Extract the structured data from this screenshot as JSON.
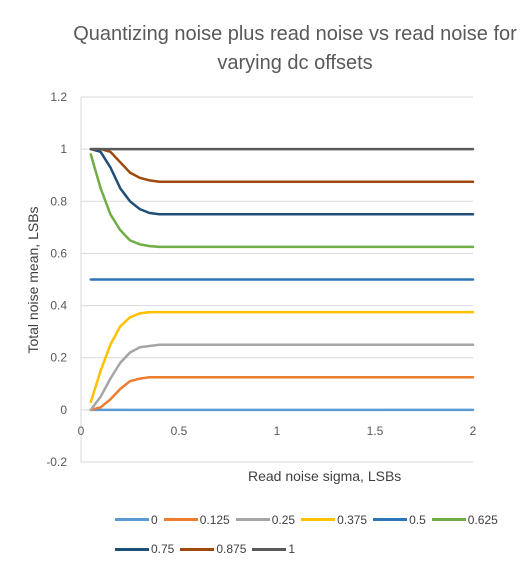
{
  "chart_data": {
    "type": "line",
    "title": "Quantizing noise plus read noise vs read noise for\nvarying dc offsets",
    "xlabel": "Read noise sigma, LSBs",
    "ylabel": "Total noise mean, LSBs",
    "xlim": [
      0,
      2
    ],
    "ylim": [
      -0.2,
      1.2
    ],
    "xticks": [
      0,
      0.5,
      1,
      1.5,
      2
    ],
    "xtick_labels": [
      "0",
      "0.5",
      "1",
      "1.5",
      "2"
    ],
    "yticks": [
      -0.2,
      0,
      0.2,
      0.4,
      0.6,
      0.8,
      1,
      1.2
    ],
    "ytick_labels": [
      "-0.2",
      "0",
      "0.2",
      "0.4",
      "0.6",
      "0.8",
      "1",
      "1.2"
    ],
    "grid": "horizontal",
    "legend": "bottom",
    "x": [
      0.05,
      0.1,
      0.15,
      0.2,
      0.25,
      0.3,
      0.35,
      0.4,
      0.5,
      0.6,
      0.7,
      0.8,
      1.0,
      1.2,
      1.4,
      1.6,
      1.8,
      2.0
    ],
    "series": [
      {
        "name": "0",
        "color": "#5B9BD5",
        "values": [
          0,
          0,
          0,
          0,
          0,
          0,
          0,
          0,
          0,
          0,
          0,
          0,
          0,
          0,
          0,
          0,
          0,
          0
        ]
      },
      {
        "name": "0.125",
        "color": "#ED7D31",
        "values": [
          0,
          0.01,
          0.04,
          0.08,
          0.11,
          0.12,
          0.125,
          0.125,
          0.125,
          0.125,
          0.125,
          0.125,
          0.125,
          0.125,
          0.125,
          0.125,
          0.125,
          0.125
        ]
      },
      {
        "name": "0.25",
        "color": "#A5A5A5",
        "values": [
          0,
          0.05,
          0.12,
          0.18,
          0.22,
          0.24,
          0.245,
          0.25,
          0.25,
          0.25,
          0.25,
          0.25,
          0.25,
          0.25,
          0.25,
          0.25,
          0.25,
          0.25
        ]
      },
      {
        "name": "0.375",
        "color": "#FFC000",
        "values": [
          0.03,
          0.15,
          0.25,
          0.32,
          0.355,
          0.37,
          0.375,
          0.375,
          0.375,
          0.375,
          0.375,
          0.375,
          0.375,
          0.375,
          0.375,
          0.375,
          0.375,
          0.375
        ]
      },
      {
        "name": "0.5",
        "color": "#2E75B6",
        "values": [
          0.5,
          0.5,
          0.5,
          0.5,
          0.5,
          0.5,
          0.5,
          0.5,
          0.5,
          0.5,
          0.5,
          0.5,
          0.5,
          0.5,
          0.5,
          0.5,
          0.5,
          0.5
        ]
      },
      {
        "name": "0.625",
        "color": "#70AD47",
        "values": [
          0.98,
          0.85,
          0.75,
          0.69,
          0.65,
          0.635,
          0.628,
          0.625,
          0.625,
          0.625,
          0.625,
          0.625,
          0.625,
          0.625,
          0.625,
          0.625,
          0.625,
          0.625
        ]
      },
      {
        "name": "0.75",
        "color": "#1F4E79",
        "values": [
          1,
          0.99,
          0.93,
          0.85,
          0.8,
          0.77,
          0.755,
          0.75,
          0.75,
          0.75,
          0.75,
          0.75,
          0.75,
          0.75,
          0.75,
          0.75,
          0.75,
          0.75
        ]
      },
      {
        "name": "0.875",
        "color": "#9E480E",
        "values": [
          1,
          1,
          0.99,
          0.95,
          0.91,
          0.89,
          0.88,
          0.875,
          0.875,
          0.875,
          0.875,
          0.875,
          0.875,
          0.875,
          0.875,
          0.875,
          0.875,
          0.875
        ]
      },
      {
        "name": "1",
        "color": "#595959",
        "values": [
          1,
          1,
          1,
          1,
          1,
          1,
          1,
          1,
          1,
          1,
          1,
          1,
          1,
          1,
          1,
          1,
          1,
          1
        ]
      }
    ]
  }
}
